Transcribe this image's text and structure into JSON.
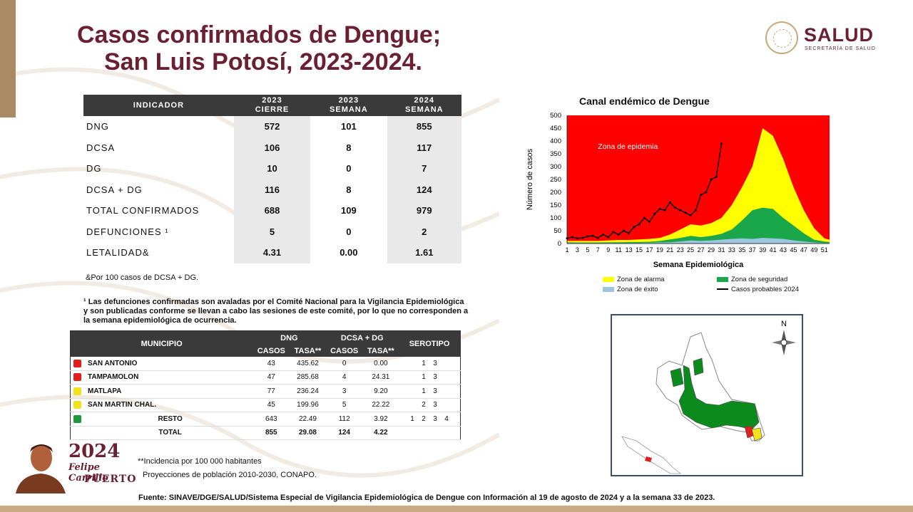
{
  "title": {
    "line1": "Casos confirmados de Dengue;",
    "line2": "San Luis Potosí, 2023-2024."
  },
  "logo": {
    "name": "SALUD",
    "sub": "SECRETARÍA DE SALUD"
  },
  "indicator_table": {
    "headers": [
      "INDICADOR",
      "2023\nCIERRE",
      "2023\nSEMANA",
      "2024\nSEMANA"
    ],
    "rows": [
      {
        "label": "DNG",
        "v": [
          "572",
          "101",
          "855"
        ]
      },
      {
        "label": "DCSA",
        "v": [
          "106",
          "8",
          "117"
        ]
      },
      {
        "label": "DG",
        "v": [
          "10",
          "0",
          "7"
        ]
      },
      {
        "label": "DCSA + DG",
        "v": [
          "116",
          "8",
          "124"
        ]
      },
      {
        "label": "TOTAL CONFIRMADOS",
        "v": [
          "688",
          "109",
          "979"
        ]
      },
      {
        "label": "DEFUNCIONES ¹",
        "v": [
          "5",
          "0",
          "2"
        ]
      },
      {
        "label": "LETALIDAD&",
        "v": [
          "4.31",
          "0.00",
          "1.61"
        ]
      }
    ]
  },
  "notes": {
    "rate": "&Por 100 casos de DCSA + DG.",
    "deaths": "¹ Las defunciones confirmadas son avaladas por el Comité Nacional para la Vigilancia Epidemiológica y son publicadas conforme se llevan a cabo las sesiones de este comité, por lo que no corresponden a la semana epidemiológica de ocurrencia.",
    "incidence": "**Incidencia por 100 000 habitantes",
    "projections": "Proyecciones de población 2010-2030,  CONAPO.",
    "source": "Fuente: SINAVE/DGE/SALUD/Sistema Especial de Vigilancia Epidemiológica de Dengue con Información al 19 de agosto de 2024 y a la semana 33 de 2023."
  },
  "municipality_table": {
    "headers": {
      "municipio": "MUNICIPIO",
      "dng": "DNG",
      "dcsa": "DCSA + DG",
      "casos": "CASOS",
      "tasa": "TASA**",
      "serotipo": "SEROTIPO"
    },
    "rows": [
      {
        "name": "SAN ANTONIO",
        "color": "#e41e1e",
        "dng_casos": "43",
        "dng_tasa": "435.62",
        "d_casos": "0",
        "d_tasa": "0.00",
        "sero": [
          "1",
          "3"
        ]
      },
      {
        "name": "TAMPAMOLON",
        "color": "#e41e1e",
        "dng_casos": "47",
        "dng_tasa": "285.68",
        "d_casos": "4",
        "d_tasa": "24.31",
        "sero": [
          "1",
          "3"
        ]
      },
      {
        "name": "MATLAPA",
        "color": "#f2e21c",
        "dng_casos": "77",
        "dng_tasa": "236.24",
        "d_casos": "3",
        "d_tasa": "9.20",
        "sero": [
          "1",
          "3"
        ]
      },
      {
        "name": "SAN MARTIN CHAL.",
        "color": "#f2e21c",
        "dng_casos": "45",
        "dng_tasa": "199.96",
        "d_casos": "5",
        "d_tasa": "22.22",
        "sero": [
          "2",
          "3"
        ]
      },
      {
        "name": "RESTO",
        "color": "#1f9a3a",
        "dng_casos": "643",
        "dng_tasa": "22.49",
        "d_casos": "112",
        "d_tasa": "3.92",
        "sero": [
          "1",
          "2",
          "3",
          "4"
        ]
      }
    ],
    "total": {
      "name": "TOTAL",
      "dng_casos": "855",
      "dng_tasa": "29.08",
      "d_casos": "124",
      "d_tasa": "4.22"
    }
  },
  "campaign": {
    "year": "2024",
    "name1": "Felipe Carrillo",
    "name2": "PUERTO"
  },
  "map": {
    "north": "N"
  },
  "colors": {
    "epidemia": "#ff0000",
    "alarma": "#ffff00",
    "seguridad": "#1aa64a",
    "exito": "#9ec6e0",
    "title": "#6b1f33"
  },
  "chart_data": {
    "type": "area",
    "title": "Canal endémico de Dengue",
    "xlabel": "Semana Epidemiológica",
    "ylabel": "Número de casos",
    "ylim": [
      0,
      500
    ],
    "yticks": [
      0,
      50,
      100,
      150,
      200,
      250,
      300,
      350,
      400,
      450,
      500
    ],
    "xlim": [
      1,
      52
    ],
    "xticks": [
      1,
      3,
      5,
      7,
      9,
      11,
      13,
      15,
      17,
      19,
      21,
      23,
      25,
      27,
      29,
      31,
      33,
      35,
      37,
      39,
      41,
      43,
      45,
      47,
      49,
      51
    ],
    "annotation": "Zona de epidemia",
    "legend": [
      "Zona de alarma",
      "Zona de seguridad",
      "Zona de éxito",
      "Casos probables 2024"
    ],
    "zones": {
      "x": [
        1,
        3,
        5,
        7,
        9,
        11,
        13,
        15,
        17,
        19,
        21,
        23,
        25,
        27,
        29,
        31,
        33,
        35,
        37,
        39,
        41,
        43,
        45,
        47,
        49,
        51,
        52
      ],
      "alarma": [
        10,
        10,
        10,
        10,
        12,
        14,
        14,
        16,
        18,
        22,
        35,
        55,
        75,
        70,
        80,
        100,
        150,
        220,
        300,
        450,
        420,
        330,
        220,
        130,
        60,
        20,
        15
      ],
      "seguridad": [
        5,
        4,
        4,
        4,
        5,
        5,
        6,
        6,
        7,
        10,
        16,
        22,
        30,
        25,
        30,
        38,
        55,
        90,
        130,
        140,
        135,
        100,
        70,
        40,
        15,
        8,
        6
      ],
      "exito": [
        2,
        2,
        2,
        2,
        2,
        2,
        2,
        2,
        3,
        4,
        5,
        8,
        12,
        10,
        12,
        15,
        18,
        20,
        18,
        22,
        20,
        18,
        12,
        8,
        4,
        2,
        2
      ]
    },
    "series": [
      {
        "name": "Casos probables 2024",
        "x": [
          1,
          2,
          3,
          4,
          5,
          6,
          7,
          8,
          9,
          10,
          11,
          12,
          13,
          14,
          15,
          16,
          17,
          18,
          19,
          20,
          21,
          22,
          23,
          24,
          25,
          26,
          27,
          28,
          29,
          30,
          31
        ],
        "values": [
          20,
          25,
          20,
          22,
          28,
          30,
          22,
          35,
          25,
          45,
          35,
          50,
          40,
          65,
          75,
          100,
          85,
          115,
          135,
          130,
          160,
          140,
          130,
          120,
          110,
          130,
          190,
          200,
          250,
          260,
          390
        ]
      }
    ]
  }
}
